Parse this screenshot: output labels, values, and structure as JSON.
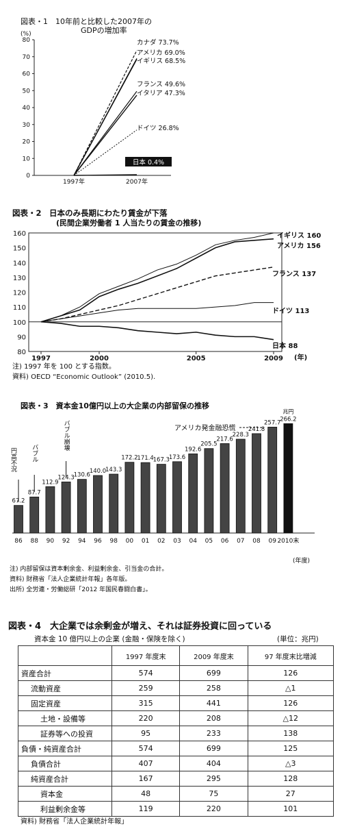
{
  "figure1": {
    "title_line1": "図表・1　10年前と比較した2007年の",
    "title_line2": "GDPの増加率",
    "unit": "(%)",
    "chart_data": {
      "type": "line",
      "x": [
        "1997年",
        "2007年"
      ],
      "ylim": [
        0,
        80
      ],
      "yticks": [
        "0",
        "10",
        "20",
        "30",
        "40",
        "50",
        "60",
        "70",
        "80"
      ],
      "series": [
        {
          "name": "カナダ 73.7%",
          "values": [
            0,
            73.7
          ]
        },
        {
          "name": "アメリカ 69.0%",
          "values": [
            0,
            69.0
          ]
        },
        {
          "name": "イギリス 68.5%",
          "values": [
            0,
            68.5
          ]
        },
        {
          "name": "フランス 49.6%",
          "values": [
            0,
            49.6
          ]
        },
        {
          "name": "イタリア 47.3%",
          "values": [
            0,
            47.3
          ]
        },
        {
          "name": "ドイツ 26.8%",
          "values": [
            0,
            26.8
          ]
        },
        {
          "name": "日本 0.4%",
          "values": [
            0,
            0.4
          ]
        }
      ]
    }
  },
  "figure2": {
    "title_line1": "図表・2　日本のみ長期にわたり賃金が下落",
    "title_line2": "(民間企業労働者 1 人当たりの賃金の推移)",
    "note1": "注) 1997 年を 100 とする指数。",
    "note2": "資料) OECD “Economic Outlook” (2010.5).",
    "xaxis_suffix": "(年)",
    "chart_data": {
      "type": "line",
      "x": [
        1997,
        1998,
        1999,
        2000,
        2001,
        2002,
        2003,
        2004,
        2005,
        2006,
        2007,
        2008,
        2009
      ],
      "xticks": [
        "1997",
        "2000",
        "2005",
        "2009"
      ],
      "ylim": [
        80,
        160
      ],
      "yticks": [
        "80",
        "90",
        "100",
        "110",
        "120",
        "130",
        "140",
        "150",
        "160"
      ],
      "series": [
        {
          "name": "イギリス 160",
          "values": [
            100,
            104,
            110,
            119,
            124,
            129,
            135,
            139,
            145,
            152,
            155,
            157,
            160
          ]
        },
        {
          "name": "アメリカ 156",
          "values": [
            100,
            104,
            108,
            117,
            122,
            126,
            131,
            136,
            143,
            150,
            154,
            155,
            156
          ]
        },
        {
          "name": "フランス 137",
          "values": [
            100,
            102,
            105,
            108,
            111,
            115,
            119,
            123,
            127,
            131,
            133,
            135,
            137
          ]
        },
        {
          "name": "ドイツ 113",
          "values": [
            100,
            102,
            104,
            106,
            108,
            109,
            109,
            109,
            109,
            110,
            111,
            113,
            113
          ]
        },
        {
          "name": "日本 88",
          "values": [
            100,
            99,
            97,
            97,
            96,
            94,
            93,
            92,
            93,
            91,
            90,
            90,
            88
          ]
        }
      ]
    }
  },
  "figure3": {
    "title": "図表・3　資本金10億円以上の大企業の内部留保の推移",
    "annotations": {
      "bubble_collapse": "バブル崩壊",
      "bubble": "バブル",
      "recession": "円高不況",
      "crisis": "アメリカ発金融恐慌",
      "unit_last": "兆円"
    },
    "note1": "注) 内部留保は資本剰余金、利益剰余金、引当金の合計。",
    "note2": "資料) 財務省「法人企業統計年報」各年版。",
    "note3": "出所) 全労連・労働総研「2012 年国民春闘白書」。",
    "year_label": "(年度)",
    "chart_data": {
      "type": "bar",
      "categories": [
        "86",
        "88",
        "90",
        "92",
        "94",
        "96",
        "98",
        "00",
        "01",
        "02",
        "03",
        "04",
        "05",
        "06",
        "07",
        "08",
        "09",
        "2010末"
      ],
      "values": [
        67.2,
        87.7,
        112.9,
        124.3,
        130.6,
        140.0,
        143.3,
        172.2,
        171.4,
        167.3,
        173.6,
        192.6,
        205.5,
        217.6,
        228.3,
        241.8,
        257.7,
        266.2
      ],
      "value_labels": [
        "67.2",
        "87.7",
        "112.9",
        "124.3",
        "130.6",
        "140.0",
        "143.3",
        "172.2",
        "171.4",
        "167.3",
        "173.6",
        "192.6",
        "205.5",
        "217.6",
        "228.3",
        "241.8",
        "257.7",
        "266.2"
      ]
    }
  },
  "figure4": {
    "title": "図表・4　大企業では余剰金が増え、それは証券投資に回っている",
    "subtitle": "資本金 10 億円以上の企業 (金融・保険を除く)",
    "unit": "(単位：兆円)",
    "source": "資料) 財務省「法人企業統計年報」",
    "chart_data": {
      "type": "table",
      "columns": [
        "",
        "1997 年度末",
        "2009 年度末",
        "97 年度末比増減"
      ],
      "rows": [
        {
          "label": "資産合計",
          "indent": 0,
          "values": [
            "574",
            "699",
            "126"
          ]
        },
        {
          "label": "流動資産",
          "indent": 1,
          "values": [
            "259",
            "258",
            "△1"
          ]
        },
        {
          "label": "固定資産",
          "indent": 1,
          "values": [
            "315",
            "441",
            "126"
          ]
        },
        {
          "label": "土地・設備等",
          "indent": 2,
          "values": [
            "220",
            "208",
            "△12"
          ]
        },
        {
          "label": "証券等への投資",
          "indent": 2,
          "values": [
            "95",
            "233",
            "138"
          ]
        },
        {
          "label": "負債・純資産合計",
          "indent": 0,
          "values": [
            "574",
            "699",
            "125"
          ]
        },
        {
          "label": "負債合計",
          "indent": 1,
          "values": [
            "407",
            "404",
            "△3"
          ]
        },
        {
          "label": "純資産合計",
          "indent": 1,
          "values": [
            "167",
            "295",
            "128"
          ]
        },
        {
          "label": "資本金",
          "indent": 2,
          "values": [
            "48",
            "75",
            "27"
          ]
        },
        {
          "label": "利益剰余金等",
          "indent": 2,
          "values": [
            "119",
            "220",
            "101"
          ]
        }
      ]
    }
  }
}
